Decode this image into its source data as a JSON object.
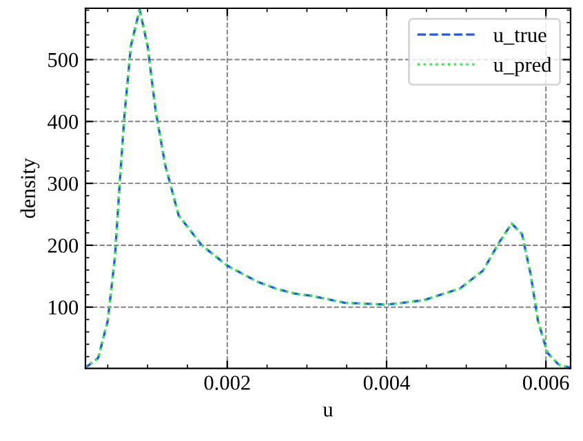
{
  "chart_data": {
    "type": "line",
    "xlabel": "u",
    "ylabel": "density",
    "x": [
      0.00022,
      0.00038,
      0.0005,
      0.00059,
      0.00065,
      0.00071,
      0.00079,
      0.0009,
      0.001,
      0.0011,
      0.00122,
      0.00139,
      0.00168,
      0.002,
      0.00238,
      0.00261,
      0.00284,
      0.00307,
      0.00347,
      0.004,
      0.00446,
      0.00492,
      0.00521,
      0.00541,
      0.00557,
      0.0057,
      0.00581,
      0.0059,
      0.00602,
      0.00616,
      0.00631
    ],
    "series": [
      {
        "name": "u_true",
        "color": "#2255ff",
        "line_style": "dashed",
        "values": [
          2,
          18,
          78,
          181,
          300,
          411,
          522,
          581,
          522,
          418,
          330,
          248,
          200,
          167,
          141,
          130,
          122,
          118,
          107,
          104,
          111,
          130,
          159,
          204,
          235,
          218,
          152,
          78,
          26,
          7,
          2
        ]
      },
      {
        "name": "u_pred",
        "color": "#33ee44",
        "line_style": "dotted",
        "values": [
          2,
          18,
          78,
          181,
          300,
          411,
          522,
          581,
          522,
          418,
          330,
          248,
          200,
          167,
          141,
          130,
          122,
          118,
          107,
          104,
          111,
          130,
          159,
          204,
          235,
          218,
          152,
          78,
          26,
          7,
          2
        ]
      }
    ],
    "xlim": [
      0.00022,
      0.00631
    ],
    "ylim": [
      1,
      583
    ],
    "xticks": [
      0.002,
      0.004,
      0.006
    ],
    "yticks": [
      100,
      200,
      300,
      400,
      500
    ],
    "grid": true,
    "legend": "top right",
    "marker": "none"
  }
}
